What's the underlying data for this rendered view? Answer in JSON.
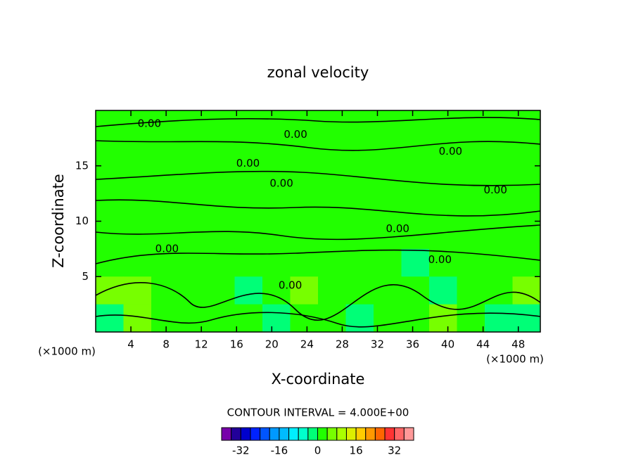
{
  "chart_data": {
    "type": "contour",
    "title": "zonal velocity",
    "x_label": "X-coordinate",
    "y_label": "Z-coordinate",
    "x_unit": "(×1000 m)",
    "y_unit": "(×1000 m)",
    "xlim": [
      0,
      50.5
    ],
    "ylim": [
      0,
      20
    ],
    "xticks": [
      4,
      8,
      12,
      16,
      20,
      24,
      28,
      32,
      36,
      40,
      44,
      48
    ],
    "yticks": [
      5,
      10,
      15
    ],
    "z": [
      [
        2,
        2,
        2,
        2,
        2,
        2,
        2,
        2,
        2,
        2,
        2,
        2,
        2,
        2,
        2,
        2
      ],
      [
        2,
        2,
        2,
        2,
        2,
        2,
        2,
        2,
        2,
        2,
        2,
        2,
        2,
        2,
        2,
        2
      ],
      [
        2,
        2,
        2,
        2,
        2,
        2,
        2,
        2,
        2,
        2,
        2,
        2,
        2,
        2,
        2,
        2
      ],
      [
        2,
        2,
        2,
        2,
        2,
        2,
        2,
        2,
        2,
        2,
        2,
        2,
        2,
        2,
        2,
        2
      ],
      [
        2,
        2,
        2,
        2,
        2,
        2,
        2,
        2,
        2,
        2,
        2,
        2,
        2,
        2,
        2,
        2
      ],
      [
        2,
        2,
        2,
        2,
        2,
        2,
        2,
        2,
        2,
        2,
        2,
        -2,
        2,
        2,
        2,
        2
      ],
      [
        6,
        6,
        2,
        2,
        2,
        -2,
        2,
        6,
        2,
        2,
        2,
        2,
        -2,
        2,
        2,
        6
      ],
      [
        -2,
        6,
        2,
        2,
        2,
        2,
        -2,
        2,
        2,
        -2,
        2,
        2,
        6,
        2,
        -2,
        -2
      ]
    ],
    "contour_labels": [
      {
        "text": "0.00",
        "x": 6.1,
        "y": 18.8
      },
      {
        "text": "0.00",
        "x": 22.7,
        "y": 17.8
      },
      {
        "text": "0.00",
        "x": 17.3,
        "y": 15.2
      },
      {
        "text": "0.00",
        "x": 21.1,
        "y": 13.4
      },
      {
        "text": "0.00",
        "x": 40.3,
        "y": 16.3
      },
      {
        "text": "0.00",
        "x": 45.4,
        "y": 12.8
      },
      {
        "text": "0.00",
        "x": 34.3,
        "y": 9.3
      },
      {
        "text": "0.00",
        "x": 8.1,
        "y": 7.5
      },
      {
        "text": "0.00",
        "x": 39.1,
        "y": 6.5
      },
      {
        "text": "0.00",
        "x": 22.1,
        "y": 4.2
      }
    ],
    "contour_interval": "CONTOUR INTERVAL = 4.000E+00",
    "levels": [
      -40,
      -36,
      -32,
      -28,
      -24,
      -20,
      -16,
      -12,
      -8,
      -4,
      0,
      4,
      8,
      12,
      16,
      20,
      24,
      28,
      32,
      36,
      40
    ],
    "colors": [
      "#7700aa",
      "#220099",
      "#0000cc",
      "#0022ff",
      "#0055ff",
      "#0099ff",
      "#00bbff",
      "#00eeff",
      "#00ffcc",
      "#00ff77",
      "#22ff00",
      "#77ff00",
      "#aaff00",
      "#ddee00",
      "#ffcc00",
      "#ff9900",
      "#ff6600",
      "#ff3333",
      "#ff6666",
      "#ff9999"
    ],
    "colorbar_ticks": [
      -32,
      -16,
      0,
      16,
      32
    ]
  }
}
